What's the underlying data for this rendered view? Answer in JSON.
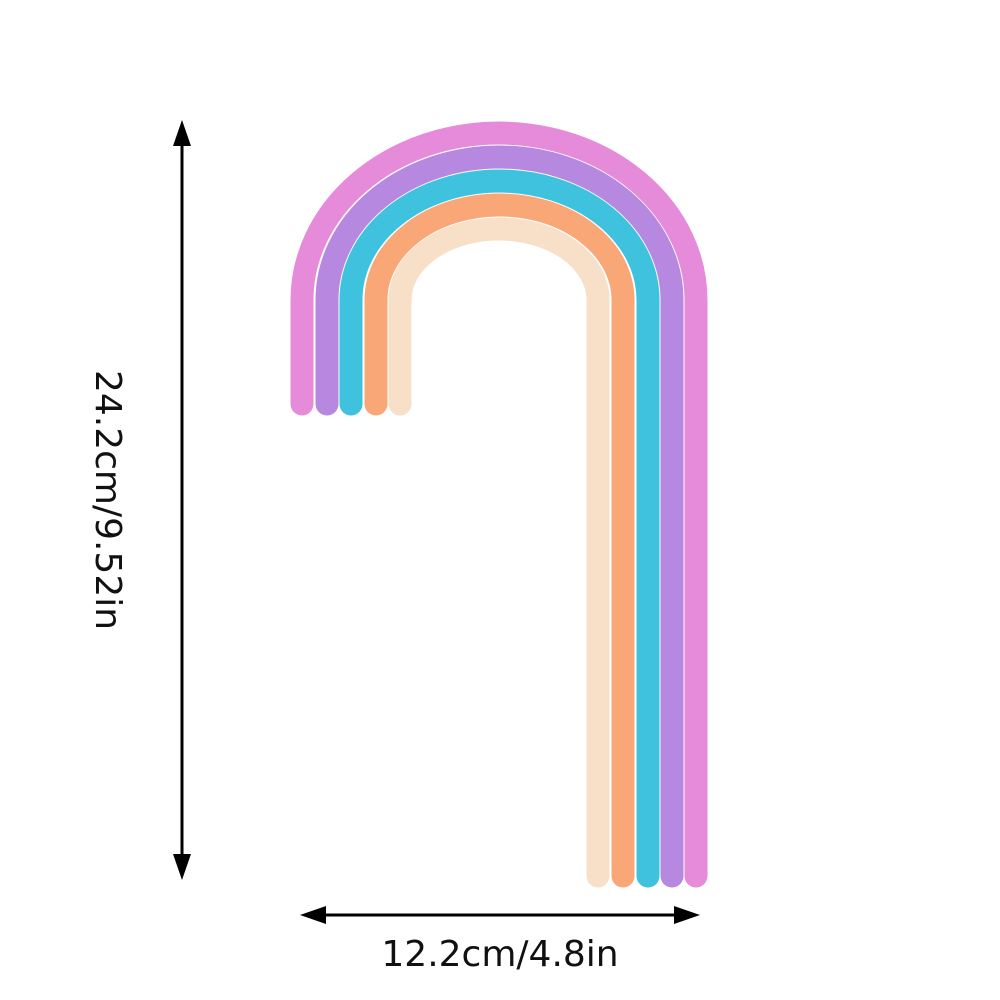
{
  "product": {
    "tubes": [
      {
        "color": "#e68bd9"
      },
      {
        "color": "#b688df"
      },
      {
        "color": "#3fc2dd"
      },
      {
        "color": "#f9a777"
      },
      {
        "color": "#f8e0c8"
      }
    ]
  },
  "dimensions": {
    "height_label": "24.2cm/9.52in",
    "width_label": "12.2cm/4.8in",
    "line_color": "#000000"
  }
}
